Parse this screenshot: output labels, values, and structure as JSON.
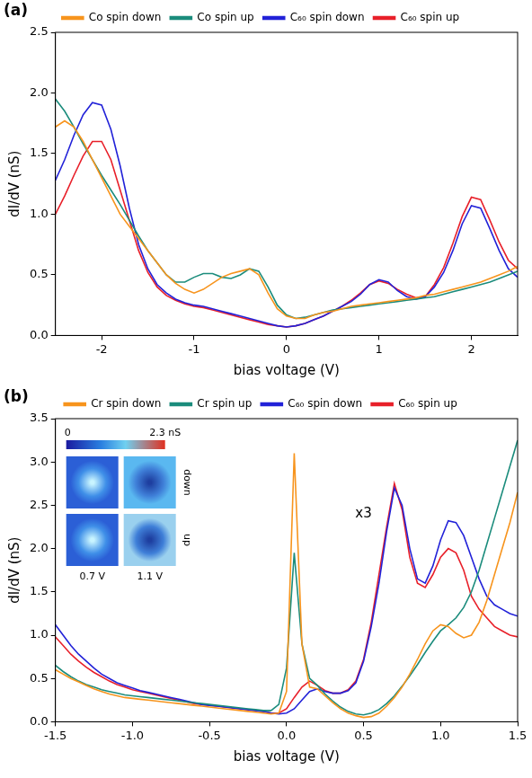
{
  "chart_data": [
    {
      "type": "line",
      "title": "(a)",
      "x_label": "bias voltage (V)",
      "y_label": "dI/dV (nS)",
      "xlim": [
        -2.5,
        2.5
      ],
      "xticks": [
        -2,
        -1,
        0,
        1,
        2
      ],
      "ylim": [
        0,
        2.5
      ],
      "yticks": [
        {
          "value": 0,
          "label": "0.0"
        },
        0.5,
        {
          "value": 1,
          "label": "1.0"
        },
        1.5,
        {
          "value": 2,
          "label": "2.0"
        },
        2.5
      ],
      "grid": false,
      "legend": "top",
      "x": [
        -2.5,
        -2.4,
        -2.3,
        -2.2,
        -2.1,
        -2.0,
        -1.9,
        -1.8,
        -1.7,
        -1.6,
        -1.5,
        -1.4,
        -1.3,
        -1.2,
        -1.1,
        -1.0,
        -0.9,
        -0.8,
        -0.7,
        -0.6,
        -0.5,
        -0.4,
        -0.3,
        -0.2,
        -0.1,
        0.0,
        0.1,
        0.2,
        0.3,
        0.4,
        0.5,
        0.6,
        0.7,
        0.8,
        0.9,
        1.0,
        1.1,
        1.2,
        1.3,
        1.4,
        1.5,
        1.6,
        1.7,
        1.8,
        1.9,
        2.0,
        2.1,
        2.2,
        2.3,
        2.4,
        2.5
      ],
      "series": [
        {
          "name": "Co spin down",
          "color": "#f7941d",
          "values": [
            1.72,
            1.77,
            1.72,
            1.6,
            1.45,
            1.3,
            1.15,
            1.0,
            0.9,
            0.8,
            0.7,
            0.6,
            0.5,
            0.43,
            0.38,
            0.35,
            0.38,
            0.43,
            0.48,
            0.51,
            0.53,
            0.55,
            0.5,
            0.35,
            0.22,
            0.16,
            0.14,
            0.14,
            0.17,
            0.19,
            0.2,
            0.22,
            0.24,
            0.25,
            0.26,
            0.27,
            0.28,
            0.29,
            0.3,
            0.31,
            0.33,
            0.34,
            0.36,
            0.38,
            0.4,
            0.42,
            0.44,
            0.47,
            0.5,
            0.53,
            0.57
          ]
        },
        {
          "name": "Co spin up",
          "color": "#1b8c7c",
          "values": [
            1.95,
            1.85,
            1.72,
            1.58,
            1.45,
            1.32,
            1.2,
            1.08,
            0.95,
            0.82,
            0.7,
            0.6,
            0.5,
            0.44,
            0.44,
            0.48,
            0.51,
            0.51,
            0.48,
            0.47,
            0.5,
            0.55,
            0.53,
            0.4,
            0.25,
            0.17,
            0.14,
            0.15,
            0.17,
            0.19,
            0.21,
            0.22,
            0.23,
            0.24,
            0.25,
            0.26,
            0.27,
            0.28,
            0.29,
            0.3,
            0.31,
            0.32,
            0.34,
            0.36,
            0.38,
            0.4,
            0.42,
            0.44,
            0.47,
            0.5,
            0.53
          ]
        },
        {
          "name": "C₆₀ spin down",
          "color": "#2222d8",
          "values": [
            1.28,
            1.45,
            1.65,
            1.82,
            1.92,
            1.9,
            1.7,
            1.4,
            1.05,
            0.75,
            0.55,
            0.42,
            0.35,
            0.3,
            0.27,
            0.25,
            0.24,
            0.22,
            0.2,
            0.18,
            0.16,
            0.14,
            0.12,
            0.1,
            0.08,
            0.07,
            0.08,
            0.1,
            0.13,
            0.16,
            0.2,
            0.24,
            0.28,
            0.34,
            0.42,
            0.46,
            0.44,
            0.37,
            0.32,
            0.3,
            0.32,
            0.4,
            0.52,
            0.7,
            0.92,
            1.07,
            1.05,
            0.88,
            0.7,
            0.55,
            0.48
          ]
        },
        {
          "name": "C₆₀ spin up",
          "color": "#e8202a",
          "values": [
            1.0,
            1.15,
            1.32,
            1.48,
            1.6,
            1.6,
            1.45,
            1.2,
            0.95,
            0.7,
            0.52,
            0.4,
            0.33,
            0.29,
            0.26,
            0.24,
            0.23,
            0.21,
            0.19,
            0.17,
            0.15,
            0.13,
            0.11,
            0.09,
            0.08,
            0.07,
            0.08,
            0.1,
            0.13,
            0.16,
            0.2,
            0.24,
            0.29,
            0.35,
            0.42,
            0.45,
            0.43,
            0.38,
            0.34,
            0.31,
            0.32,
            0.42,
            0.56,
            0.76,
            0.98,
            1.14,
            1.12,
            0.95,
            0.77,
            0.62,
            0.55
          ]
        }
      ]
    },
    {
      "type": "line",
      "title": "(b)",
      "x_label": "bias voltage (V)",
      "y_label": "dI/dV (nS)",
      "xlim": [
        -1.5,
        1.5
      ],
      "xticks": [
        -1.5,
        {
          "value": -1,
          "label": "-1.0"
        },
        -0.5,
        {
          "value": 0,
          "label": "0.0"
        },
        0.5,
        {
          "value": 1,
          "label": "1.0"
        },
        1.5
      ],
      "ylim": [
        0,
        3.5
      ],
      "yticks": [
        {
          "value": 0,
          "label": "0.0"
        },
        0.5,
        {
          "value": 1,
          "label": "1.0"
        },
        1.5,
        {
          "value": 2,
          "label": "2.0"
        },
        2.5,
        {
          "value": 3,
          "label": "3.0"
        },
        3.5
      ],
      "grid": false,
      "legend": "top",
      "annotations": [
        {
          "text": "x3",
          "x": 0.5,
          "y": 2.4
        }
      ],
      "inset": {
        "colorbar": {
          "range": [
            0,
            2.3
          ],
          "ticks": [
            0,
            {
              "value": 2.3,
              "label": "2.3 nS"
            }
          ]
        },
        "rows": [
          "down",
          "up"
        ],
        "columns": [
          "0.7 V",
          "1.1 V"
        ]
      },
      "x": [
        -1.5,
        -1.45,
        -1.4,
        -1.35,
        -1.3,
        -1.25,
        -1.2,
        -1.15,
        -1.1,
        -1.05,
        -1.0,
        -0.95,
        -0.9,
        -0.85,
        -0.8,
        -0.75,
        -0.7,
        -0.65,
        -0.6,
        -0.55,
        -0.5,
        -0.45,
        -0.4,
        -0.35,
        -0.3,
        -0.25,
        -0.2,
        -0.15,
        -0.1,
        -0.05,
        0.0,
        0.05,
        0.1,
        0.15,
        0.2,
        0.25,
        0.3,
        0.35,
        0.4,
        0.45,
        0.5,
        0.55,
        0.6,
        0.65,
        0.7,
        0.75,
        0.8,
        0.85,
        0.9,
        0.95,
        1.0,
        1.05,
        1.1,
        1.15,
        1.2,
        1.25,
        1.3,
        1.35,
        1.4,
        1.45,
        1.5
      ],
      "series": [
        {
          "name": "Cr spin down",
          "color": "#f7941d",
          "values": [
            0.6,
            0.55,
            0.5,
            0.46,
            0.42,
            0.38,
            0.35,
            0.32,
            0.3,
            0.28,
            0.27,
            0.26,
            0.25,
            0.24,
            0.23,
            0.22,
            0.21,
            0.2,
            0.19,
            0.18,
            0.17,
            0.16,
            0.15,
            0.14,
            0.13,
            0.12,
            0.11,
            0.1,
            0.09,
            0.1,
            0.35,
            3.1,
            0.9,
            0.4,
            0.38,
            0.3,
            0.22,
            0.15,
            0.1,
            0.07,
            0.05,
            0.06,
            0.1,
            0.18,
            0.28,
            0.4,
            0.55,
            0.72,
            0.9,
            1.05,
            1.12,
            1.1,
            1.02,
            0.97,
            1.0,
            1.15,
            1.4,
            1.7,
            2.0,
            2.3,
            2.65
          ]
        },
        {
          "name": "Cr spin up",
          "color": "#1b8c7c",
          "values": [
            0.65,
            0.58,
            0.52,
            0.47,
            0.43,
            0.4,
            0.37,
            0.35,
            0.33,
            0.31,
            0.3,
            0.29,
            0.28,
            0.27,
            0.26,
            0.25,
            0.24,
            0.23,
            0.22,
            0.21,
            0.2,
            0.19,
            0.18,
            0.17,
            0.16,
            0.15,
            0.14,
            0.13,
            0.13,
            0.2,
            0.62,
            1.95,
            0.9,
            0.5,
            0.42,
            0.32,
            0.24,
            0.17,
            0.12,
            0.09,
            0.08,
            0.1,
            0.14,
            0.21,
            0.3,
            0.41,
            0.53,
            0.66,
            0.8,
            0.93,
            1.05,
            1.12,
            1.2,
            1.32,
            1.5,
            1.75,
            2.05,
            2.35,
            2.65,
            2.95,
            3.25
          ]
        },
        {
          "name": "C₆₀ spin down",
          "color": "#2222d8",
          "values": [
            1.12,
            1.0,
            0.88,
            0.78,
            0.7,
            0.62,
            0.55,
            0.5,
            0.45,
            0.42,
            0.39,
            0.36,
            0.34,
            0.32,
            0.3,
            0.28,
            0.26,
            0.24,
            0.22,
            0.2,
            0.19,
            0.18,
            0.17,
            0.16,
            0.15,
            0.14,
            0.13,
            0.12,
            0.1,
            0.09,
            0.1,
            0.15,
            0.25,
            0.35,
            0.38,
            0.35,
            0.33,
            0.33,
            0.36,
            0.45,
            0.7,
            1.1,
            1.6,
            2.2,
            2.7,
            2.5,
            2.0,
            1.65,
            1.6,
            1.8,
            2.1,
            2.32,
            2.3,
            2.15,
            1.9,
            1.65,
            1.45,
            1.35,
            1.3,
            1.25,
            1.22
          ]
        },
        {
          "name": "C₆₀ spin up",
          "color": "#e8202a",
          "values": [
            0.98,
            0.88,
            0.78,
            0.7,
            0.63,
            0.57,
            0.52,
            0.47,
            0.43,
            0.4,
            0.37,
            0.35,
            0.33,
            0.31,
            0.29,
            0.27,
            0.25,
            0.23,
            0.21,
            0.2,
            0.19,
            0.18,
            0.17,
            0.16,
            0.15,
            0.14,
            0.13,
            0.12,
            0.1,
            0.1,
            0.15,
            0.28,
            0.4,
            0.47,
            0.42,
            0.36,
            0.33,
            0.33,
            0.37,
            0.47,
            0.72,
            1.15,
            1.7,
            2.25,
            2.75,
            2.45,
            1.9,
            1.6,
            1.55,
            1.7,
            1.9,
            2.0,
            1.95,
            1.75,
            1.45,
            1.3,
            1.2,
            1.1,
            1.05,
            1.0,
            0.98
          ]
        }
      ]
    }
  ]
}
